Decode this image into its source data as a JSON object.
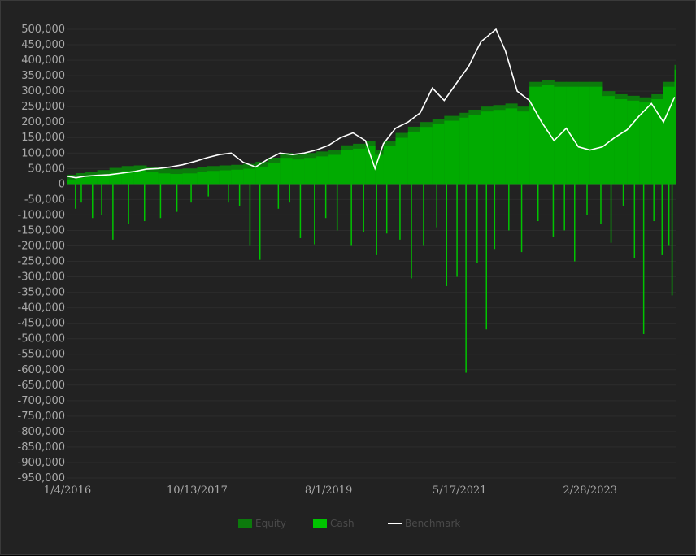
{
  "chart_data": {
    "type": "bar",
    "ylim": [
      -950000,
      500000
    ],
    "yticks": [
      500000,
      450000,
      400000,
      350000,
      300000,
      250000,
      200000,
      150000,
      100000,
      50000,
      0,
      -50000,
      -100000,
      -150000,
      -200000,
      -250000,
      -300000,
      -350000,
      -400000,
      -450000,
      -500000,
      -550000,
      -600000,
      -650000,
      -700000,
      -750000,
      -800000,
      -850000,
      -900000,
      -950000
    ],
    "ytick_labels": [
      "500,000",
      "450,000",
      "400,000",
      "350,000",
      "300,000",
      "250,000",
      "200,000",
      "150,000",
      "100,000",
      "50,000",
      "0",
      "-50,000",
      "-100,000",
      "-150,000",
      "-200,000",
      "-250,000",
      "-300,000",
      "-350,000",
      "-400,000",
      "-450,000",
      "-500,000",
      "-550,000",
      "-600,000",
      "-650,000",
      "-700,000",
      "-750,000",
      "-800,000",
      "-850,000",
      "-900,000",
      "-950,000"
    ],
    "xlim": [
      "2016-01-04",
      "2024-05-01"
    ],
    "xticks": [
      "2016-01-04",
      "2017-10-13",
      "2019-08-01",
      "2021-05-17",
      "2023-02-28"
    ],
    "xtick_labels": [
      "1/4/2016",
      "10/13/2017",
      "8/1/2019",
      "5/17/2021",
      "2/28/2023"
    ],
    "grid": true,
    "legend_position": "bottom-center",
    "series": [
      {
        "name": "Equity",
        "kind": "bar",
        "color": "#0c7a0c",
        "x": [
          "2016-01-04",
          "2016-02-15",
          "2016-04-01",
          "2016-06-01",
          "2016-08-01",
          "2016-10-01",
          "2016-12-01",
          "2017-02-01",
          "2017-04-01",
          "2017-06-01",
          "2017-08-01",
          "2017-10-13",
          "2017-12-01",
          "2018-02-01",
          "2018-04-01",
          "2018-06-01",
          "2018-08-01",
          "2018-10-01",
          "2018-12-01",
          "2019-02-01",
          "2019-04-01",
          "2019-06-01",
          "2019-08-01",
          "2019-10-01",
          "2019-12-01",
          "2020-02-01",
          "2020-03-20",
          "2020-05-01",
          "2020-07-01",
          "2020-09-01",
          "2020-11-01",
          "2021-01-01",
          "2021-03-01",
          "2021-05-17",
          "2021-07-01",
          "2021-09-01",
          "2021-11-01",
          "2022-01-01",
          "2022-03-01",
          "2022-05-01",
          "2022-07-01",
          "2022-09-01",
          "2022-11-01",
          "2023-01-01",
          "2023-02-28",
          "2023-05-01",
          "2023-07-01",
          "2023-09-01",
          "2023-11-01",
          "2024-01-01",
          "2024-03-01",
          "2024-04-25"
        ],
        "values": [
          30000,
          35000,
          40000,
          45000,
          52000,
          58000,
          60000,
          55000,
          50000,
          48000,
          50000,
          55000,
          58000,
          60000,
          62000,
          65000,
          72000,
          85000,
          100000,
          95000,
          100000,
          105000,
          110000,
          125000,
          130000,
          140000,
          110000,
          140000,
          165000,
          185000,
          200000,
          210000,
          220000,
          230000,
          240000,
          250000,
          255000,
          260000,
          250000,
          330000,
          335000,
          330000,
          330000,
          330000,
          330000,
          300000,
          290000,
          285000,
          280000,
          290000,
          330000,
          385000
        ]
      },
      {
        "name": "Cash",
        "kind": "bar",
        "color": "#00c400",
        "x": [
          "2016-02-10",
          "2016-03-10",
          "2016-05-05",
          "2016-06-20",
          "2016-08-15",
          "2016-11-01",
          "2017-01-20",
          "2017-04-10",
          "2017-07-01",
          "2017-09-10",
          "2017-12-05",
          "2018-03-15",
          "2018-05-10",
          "2018-07-01",
          "2018-08-20",
          "2018-11-20",
          "2019-01-15",
          "2019-03-10",
          "2019-05-20",
          "2019-07-15",
          "2019-09-10",
          "2019-11-20",
          "2020-01-20",
          "2020-03-25",
          "2020-05-15",
          "2020-07-20",
          "2020-09-15",
          "2020-11-15",
          "2021-01-20",
          "2021-03-10",
          "2021-05-01",
          "2021-06-15",
          "2021-08-10",
          "2021-09-25",
          "2021-11-05",
          "2022-01-15",
          "2022-03-20",
          "2022-06-10",
          "2022-08-25",
          "2022-10-20",
          "2022-12-10",
          "2023-02-10",
          "2023-04-20",
          "2023-06-10",
          "2023-08-10",
          "2023-10-05",
          "2023-11-20",
          "2024-01-10",
          "2024-02-20",
          "2024-03-25",
          "2024-04-10"
        ],
        "values": [
          -80000,
          -60000,
          -110000,
          -100000,
          -180000,
          -130000,
          -120000,
          -110000,
          -90000,
          -60000,
          -40000,
          -60000,
          -70000,
          -200000,
          -245000,
          -80000,
          -60000,
          -175000,
          -195000,
          -110000,
          -150000,
          -200000,
          -155000,
          -230000,
          -160000,
          -180000,
          -305000,
          -200000,
          -140000,
          -330000,
          -300000,
          -610000,
          -255000,
          -470000,
          -210000,
          -150000,
          -220000,
          -120000,
          -170000,
          -150000,
          -250000,
          -100000,
          -130000,
          -190000,
          -70000,
          -240000,
          -485000,
          -120000,
          -230000,
          -200000,
          -360000
        ]
      },
      {
        "name": "Benchmark",
        "kind": "line",
        "color": "#ffffff",
        "x": [
          "2016-01-04",
          "2016-02-15",
          "2016-04-01",
          "2016-06-01",
          "2016-08-01",
          "2016-10-01",
          "2016-12-01",
          "2017-02-01",
          "2017-04-01",
          "2017-06-01",
          "2017-08-01",
          "2017-10-13",
          "2017-12-01",
          "2018-02-01",
          "2018-04-01",
          "2018-06-01",
          "2018-08-01",
          "2018-10-01",
          "2018-12-01",
          "2019-02-01",
          "2019-04-01",
          "2019-06-01",
          "2019-08-01",
          "2019-10-01",
          "2019-12-01",
          "2020-02-01",
          "2020-03-20",
          "2020-05-01",
          "2020-07-01",
          "2020-09-01",
          "2020-11-01",
          "2021-01-01",
          "2021-03-01",
          "2021-05-17",
          "2021-07-01",
          "2021-09-01",
          "2021-11-15",
          "2022-01-01",
          "2022-03-01",
          "2022-05-01",
          "2022-07-01",
          "2022-09-01",
          "2022-11-01",
          "2023-01-01",
          "2023-02-28",
          "2023-05-01",
          "2023-07-01",
          "2023-09-01",
          "2023-11-01",
          "2024-01-01",
          "2024-03-01",
          "2024-04-25"
        ],
        "values": [
          25000,
          20000,
          25000,
          28000,
          30000,
          35000,
          40000,
          48000,
          50000,
          55000,
          62000,
          75000,
          85000,
          95000,
          100000,
          70000,
          55000,
          80000,
          100000,
          95000,
          100000,
          110000,
          125000,
          150000,
          165000,
          140000,
          50000,
          130000,
          180000,
          200000,
          230000,
          310000,
          270000,
          340000,
          380000,
          460000,
          500000,
          430000,
          300000,
          270000,
          200000,
          140000,
          180000,
          120000,
          110000,
          120000,
          150000,
          175000,
          220000,
          260000,
          200000,
          280000
        ]
      }
    ]
  }
}
